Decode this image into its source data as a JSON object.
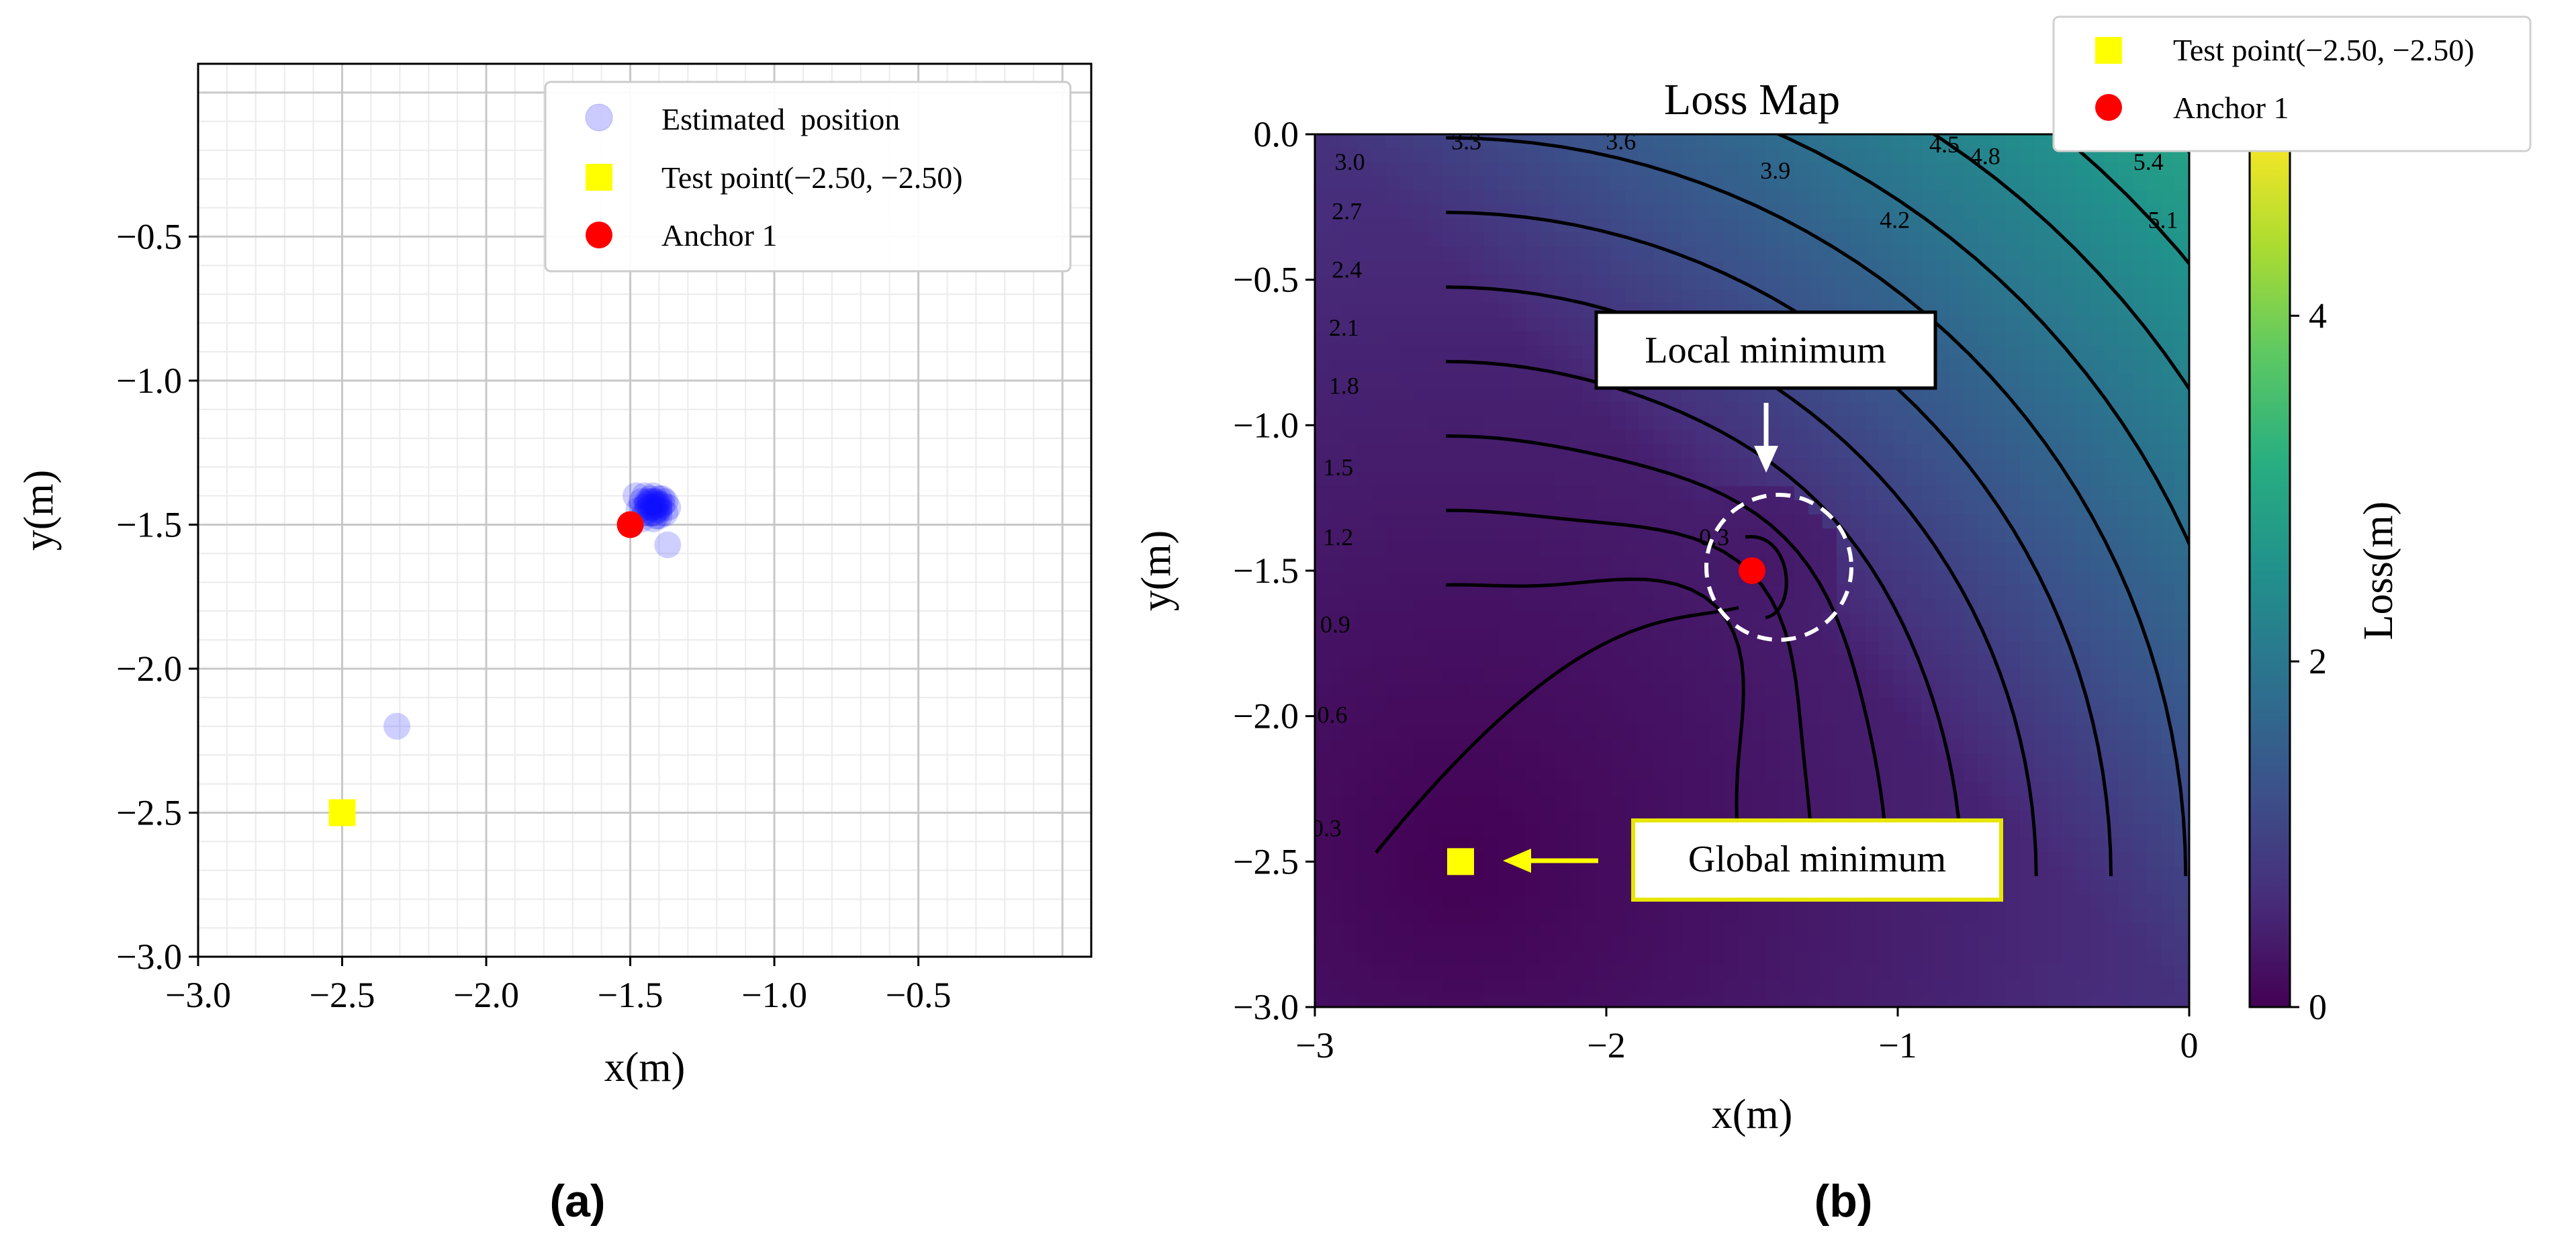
{
  "chart_data": [
    {
      "panel_label": "(a)",
      "type": "scatter",
      "xlabel": "x(m)",
      "ylabel": "y(m)",
      "xlim": [
        -3.0,
        0.1
      ],
      "ylim": [
        -3.0,
        0.1
      ],
      "x_ticks": [
        -3.0,
        -2.5,
        -2.0,
        -1.5,
        -1.0,
        -0.5
      ],
      "x_tick_labels": [
        "−3.0",
        "−2.5",
        "−2.0",
        "−1.5",
        "−1.0",
        "−0.5"
      ],
      "y_ticks": [
        -3.0,
        -2.5,
        -2.0,
        -1.5,
        -1.0,
        -0.5
      ],
      "y_tick_labels": [
        "−3.0",
        "−2.5",
        "−2.0",
        "−1.5",
        "−1.0",
        "−0.5"
      ],
      "grid": true,
      "minor_grid": true,
      "legend_position": "top-right",
      "series": [
        {
          "name": "Estimated  position",
          "marker": "circle",
          "color": "#1010ff",
          "alpha": 0.2,
          "points": [
            [
              -1.45,
              -1.4
            ],
            [
              -1.43,
              -1.41
            ],
            [
              -1.41,
              -1.42
            ],
            [
              -1.44,
              -1.43
            ],
            [
              -1.42,
              -1.44
            ],
            [
              -1.4,
              -1.45
            ],
            [
              -1.43,
              -1.46
            ],
            [
              -1.41,
              -1.47
            ],
            [
              -1.39,
              -1.43
            ],
            [
              -1.44,
              -1.45
            ],
            [
              -1.42,
              -1.42
            ],
            [
              -1.4,
              -1.41
            ],
            [
              -1.45,
              -1.44
            ],
            [
              -1.41,
              -1.45
            ],
            [
              -1.43,
              -1.44
            ],
            [
              -1.38,
              -1.46
            ],
            [
              -1.42,
              -1.48
            ],
            [
              -1.4,
              -1.44
            ],
            [
              -1.44,
              -1.42
            ],
            [
              -1.39,
              -1.41
            ],
            [
              -1.46,
              -1.42
            ],
            [
              -1.42,
              -1.46
            ],
            [
              -1.4,
              -1.47
            ],
            [
              -1.37,
              -1.44
            ],
            [
              -1.43,
              -1.42
            ],
            [
              -1.41,
              -1.43
            ],
            [
              -1.45,
              -1.46
            ],
            [
              -1.38,
              -1.42
            ],
            [
              -1.42,
              -1.4
            ],
            [
              -1.4,
              -1.43
            ],
            [
              -1.48,
              -1.4
            ],
            [
              -1.47,
              -1.45
            ],
            [
              -1.46,
              -1.48
            ],
            [
              -1.37,
              -1.57
            ],
            [
              -2.31,
              -2.2
            ]
          ]
        },
        {
          "name": "Test point(−2.50, −2.50)",
          "marker": "square",
          "color": "#ffff00",
          "points": [
            [
              -2.5,
              -2.5
            ]
          ]
        },
        {
          "name": "Anchor 1",
          "marker": "circle",
          "color": "#ff0000",
          "points": [
            [
              -1.5,
              -1.5
            ]
          ]
        }
      ]
    },
    {
      "panel_label": "(b)",
      "type": "heatmap",
      "title": "Loss Map",
      "xlabel": "x(m)",
      "ylabel": "y(m)",
      "xlim": [
        -3,
        0
      ],
      "ylim": [
        -3,
        0
      ],
      "x_ticks": [
        -3,
        -2,
        -1,
        0
      ],
      "x_tick_labels": [
        "−3",
        "−2",
        "−1",
        "0"
      ],
      "y_ticks": [
        -3.0,
        -2.5,
        -2.0,
        -1.5,
        -1.0,
        -0.5,
        0.0
      ],
      "y_tick_labels": [
        "−3.0",
        "−2.5",
        "−2.0",
        "−1.5",
        "−1.0",
        "−0.5",
        "0.0"
      ],
      "colormap": "viridis",
      "colorbar": {
        "label": "Loss(m)",
        "range": [
          0,
          5.05
        ],
        "ticks": [
          0,
          2,
          4
        ],
        "tick_labels": [
          "0",
          "2",
          "4"
        ]
      },
      "contour_levels": [
        0.3,
        0.6,
        0.9,
        1.2,
        1.5,
        1.8,
        2.1,
        2.4,
        2.7,
        3.0,
        3.3,
        3.6,
        3.9,
        4.2,
        4.5,
        4.8,
        5.1,
        5.4
      ],
      "contour_labels": [
        {
          "text": "3.0",
          "x": -2.88,
          "y": -0.09
        },
        {
          "text": "2.7",
          "x": -2.89,
          "y": -0.26
        },
        {
          "text": "2.4",
          "x": -2.89,
          "y": -0.46
        },
        {
          "text": "2.1",
          "x": -2.9,
          "y": -0.66
        },
        {
          "text": "1.8",
          "x": -2.9,
          "y": -0.86
        },
        {
          "text": "1.5",
          "x": -2.92,
          "y": -1.14
        },
        {
          "text": "1.2",
          "x": -2.92,
          "y": -1.38
        },
        {
          "text": "0.9",
          "x": -2.93,
          "y": -1.68
        },
        {
          "text": "0.6",
          "x": -2.94,
          "y": -1.99
        },
        {
          "text": "0.3",
          "x": -2.96,
          "y": -2.38
        },
        {
          "text": "0.3",
          "x": -1.63,
          "y": -1.38
        },
        {
          "text": "3.3",
          "x": -2.48,
          "y": -0.02
        },
        {
          "text": "3.6",
          "x": -1.95,
          "y": -0.02
        },
        {
          "text": "3.9",
          "x": -1.42,
          "y": -0.12
        },
        {
          "text": "4.2",
          "x": -1.01,
          "y": -0.29
        },
        {
          "text": "4.5",
          "x": -0.84,
          "y": -0.03
        },
        {
          "text": "4.8",
          "x": -0.7,
          "y": -0.07
        },
        {
          "text": "5.1",
          "x": -0.09,
          "y": -0.29
        },
        {
          "text": "5.4",
          "x": -0.14,
          "y": -0.09
        }
      ],
      "legend_position": "top-right",
      "legend": [
        {
          "name": "Test point(−2.50, −2.50)",
          "marker": "square",
          "color": "#ffff00"
        },
        {
          "name": "Anchor 1",
          "marker": "circle",
          "color": "#ff0000"
        }
      ],
      "points": [
        {
          "name": "Test point(−2.50, −2.50)",
          "marker": "square",
          "color": "#ffff00",
          "x": -2.5,
          "y": -2.5
        },
        {
          "name": "Anchor 1",
          "marker": "circle",
          "color": "#ff0000",
          "x": -1.5,
          "y": -1.5
        }
      ],
      "annotations": [
        {
          "text": "Local minimum",
          "border_color": "#000000",
          "arrow_color": "#ffffff",
          "target": [
            -1.5,
            -1.5
          ],
          "circle_radius": 0.25
        },
        {
          "text": "Global minimum",
          "border_color": "#e6e600",
          "arrow_color": "#ffff00",
          "target": [
            -2.5,
            -2.5
          ]
        }
      ]
    }
  ]
}
